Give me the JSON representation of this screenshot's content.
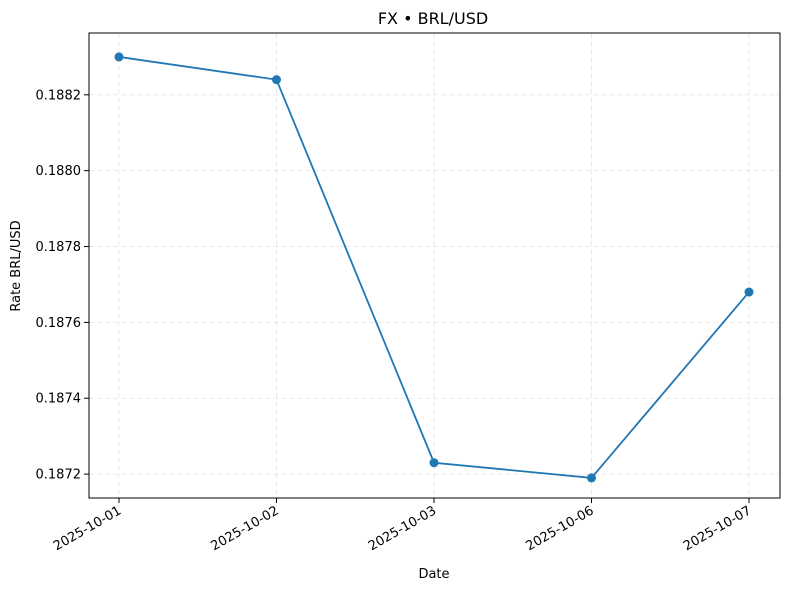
{
  "chart_data": {
    "type": "line",
    "title": "FX • BRL/USD",
    "xlabel": "Date",
    "ylabel": "Rate BRL/USD",
    "categories": [
      "2025-10-01",
      "2025-10-02",
      "2025-10-03",
      "2025-10-06",
      "2025-10-07"
    ],
    "series": [
      {
        "name": "BRL/USD",
        "values": [
          0.1883,
          0.18824,
          0.18723,
          0.18719,
          0.18768
        ]
      }
    ],
    "yticks": [
      "0.1872",
      "0.1874",
      "0.1876",
      "0.1878",
      "0.1880",
      "0.1882"
    ],
    "ylim": [
      0.187137,
      0.188363
    ],
    "grid": true,
    "line_color": "#1f77b4"
  }
}
